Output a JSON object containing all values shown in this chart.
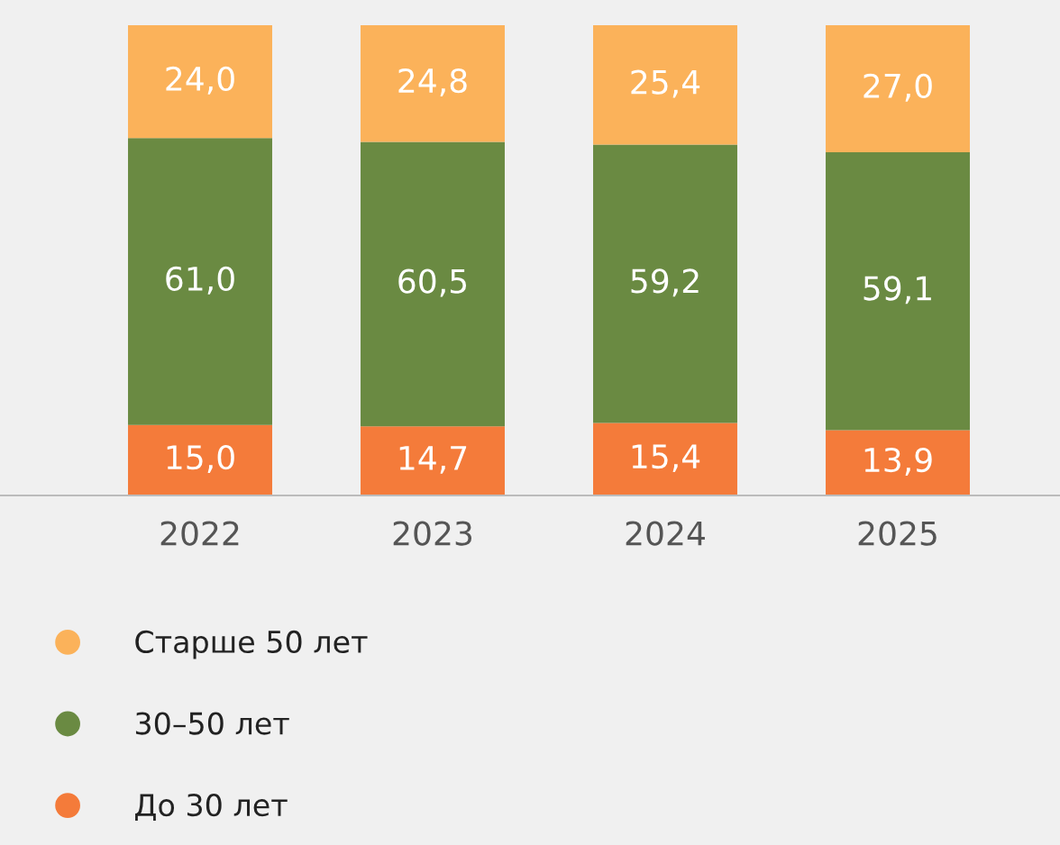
{
  "chart_data": {
    "type": "bar",
    "stacked": true,
    "categories": [
      "2022",
      "2023",
      "2024",
      "2025"
    ],
    "series": [
      {
        "name": "До 30 лет",
        "color": "#f47b3a",
        "values": [
          15.0,
          14.7,
          15.4,
          13.9
        ],
        "value_labels": [
          "15,0",
          "14,7",
          "15,4",
          "13,9"
        ]
      },
      {
        "name": "30–50 лет",
        "color": "#6a8a42",
        "values": [
          61.0,
          60.5,
          59.2,
          59.1
        ],
        "value_labels": [
          "61,0",
          "60,5",
          "59,2",
          "59,1"
        ]
      },
      {
        "name": "Старше 50 лет",
        "color": "#fbb25a",
        "values": [
          24.0,
          24.8,
          25.4,
          27.0
        ],
        "value_labels": [
          "24,0",
          "24,8",
          "25,4",
          "27,0"
        ]
      }
    ],
    "legend": "bottom"
  }
}
